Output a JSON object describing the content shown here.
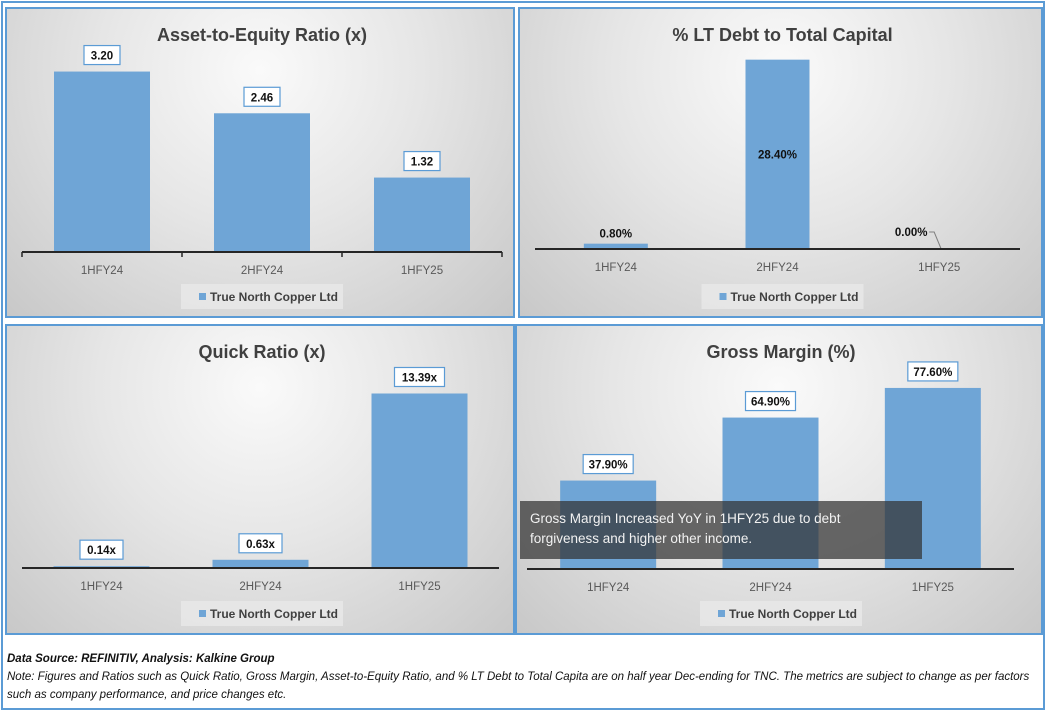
{
  "colors": {
    "bar": "#6fa5d6",
    "border": "#5b9bd5",
    "axis": "#262626"
  },
  "legend_icon": "square-icon",
  "chart_data": [
    {
      "id": "asset-equity",
      "type": "bar",
      "title": "Asset-to-Equity Ratio (x)",
      "categories": [
        "1HFY24",
        "2HFY24",
        "1HFY25"
      ],
      "values": [
        3.2,
        2.46,
        1.32
      ],
      "labels": [
        "3.20",
        "2.46",
        "1.32"
      ],
      "label_style": "boxed-above",
      "legend": "True North Copper Ltd",
      "ylim": [
        0,
        3.6
      ],
      "xlabel": "",
      "ylabel": ""
    },
    {
      "id": "lt-debt",
      "type": "bar",
      "title": "% LT Debt to Total Capital",
      "categories": [
        "1HFY24",
        "2HFY24",
        "1HFY25"
      ],
      "values": [
        0.8,
        28.4,
        0.0
      ],
      "labels": [
        "0.80%",
        "28.40%",
        "0.00%"
      ],
      "label_style": "mixed",
      "legend": "True North Copper Ltd",
      "ylim": [
        0,
        30
      ],
      "xlabel": "",
      "ylabel": ""
    },
    {
      "id": "quick-ratio",
      "type": "bar",
      "title": "Quick Ratio (x)",
      "categories": [
        "1HFY24",
        "2HFY24",
        "1HFY25"
      ],
      "values": [
        0.14,
        0.63,
        13.39
      ],
      "labels": [
        "0.14x",
        "0.63x",
        "13.39x"
      ],
      "label_style": "boxed-above",
      "legend": "True North Copper Ltd",
      "ylim": [
        0,
        15.5
      ],
      "xlabel": "",
      "ylabel": ""
    },
    {
      "id": "gross-margin",
      "type": "bar",
      "title": "Gross Margin (%)",
      "categories": [
        "1HFY24",
        "2HFY24",
        "1HFY25"
      ],
      "values": [
        37.9,
        64.9,
        77.6
      ],
      "labels": [
        "37.90%",
        "64.90%",
        "77.60%"
      ],
      "label_style": "boxed-above",
      "legend": "True North Copper Ltd",
      "ylim": [
        0,
        87
      ],
      "xlabel": "",
      "ylabel": "",
      "annotation": "Gross Margin Increased YoY in 1HFY25 due to debt forgiveness and higher other income."
    }
  ],
  "footer": {
    "source": "Data Source: REFINITIV, Analysis: Kalkine Group",
    "note": "Note: Figures and Ratios such as Quick Ratio, Gross Margin, Asset-to-Equity Ratio, and % LT Debt to Total Capita  are on half year Dec-ending for TNC. The metrics are subject to change as per factors such as company performance, and price changes etc."
  }
}
